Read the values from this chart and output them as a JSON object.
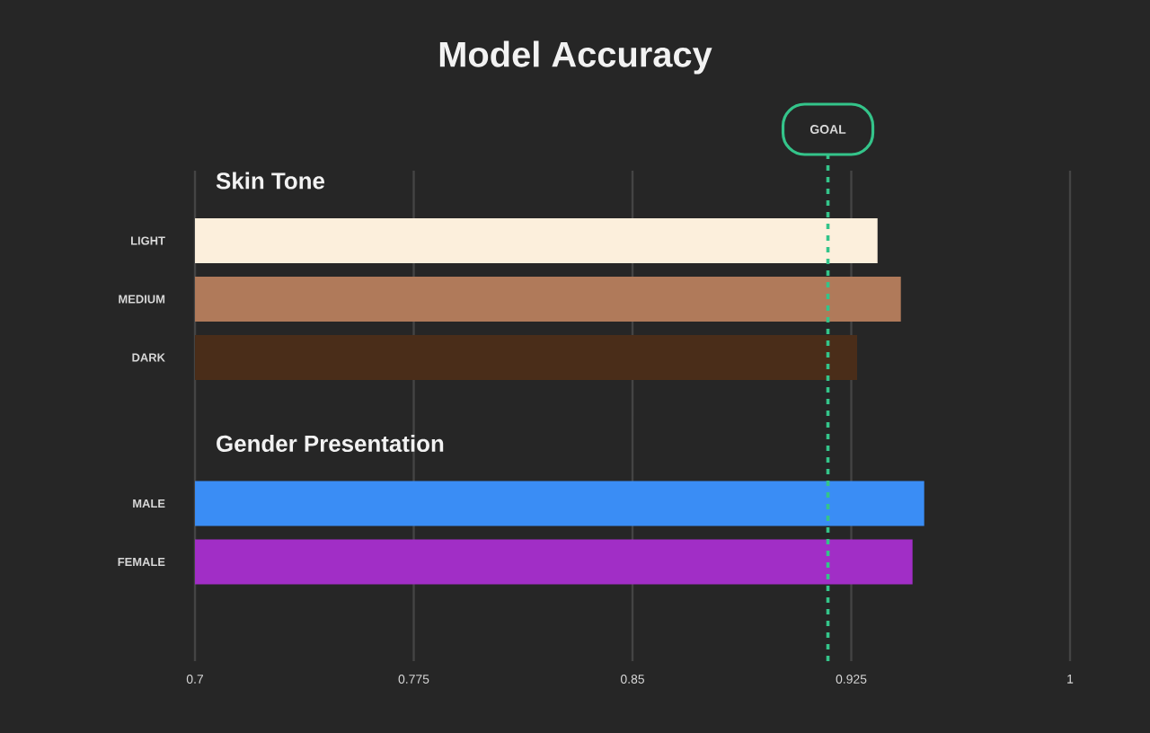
{
  "chart_data": [
    {
      "type": "bar",
      "orientation": "horizontal",
      "title": "Model Accuracy",
      "subtitle": "Skin Tone",
      "categories": [
        "LIGHT",
        "MEDIUM",
        "DARK"
      ],
      "values": [
        0.934,
        0.942,
        0.927
      ],
      "colors": [
        "#fcefdc",
        "#b07a5a",
        "#4a2d19"
      ],
      "xlim": [
        0.7,
        1
      ],
      "xticks": [
        0.7,
        0.775,
        0.85,
        0.925,
        1
      ],
      "grid": "x",
      "tick_labels": "y",
      "ref_lines": [
        {
          "axis": "x",
          "value": 0.917,
          "label": "GOAL",
          "color": "#34c48a",
          "line_style": "dashed"
        }
      ]
    },
    {
      "type": "bar",
      "orientation": "horizontal",
      "subtitle": "Gender Presentation",
      "categories": [
        "MALE",
        "FEMALE"
      ],
      "values": [
        0.95,
        0.946
      ],
      "colors": [
        "#3a8df5",
        "#a12ec6"
      ],
      "xlim": [
        0.7,
        1
      ],
      "xticks": [
        0.7,
        0.775,
        0.85,
        0.925,
        1
      ],
      "grid": "x",
      "ref_lines": [
        {
          "axis": "x",
          "value": 0.917,
          "color": "#34c48a",
          "line_style": "dashed"
        }
      ]
    }
  ]
}
